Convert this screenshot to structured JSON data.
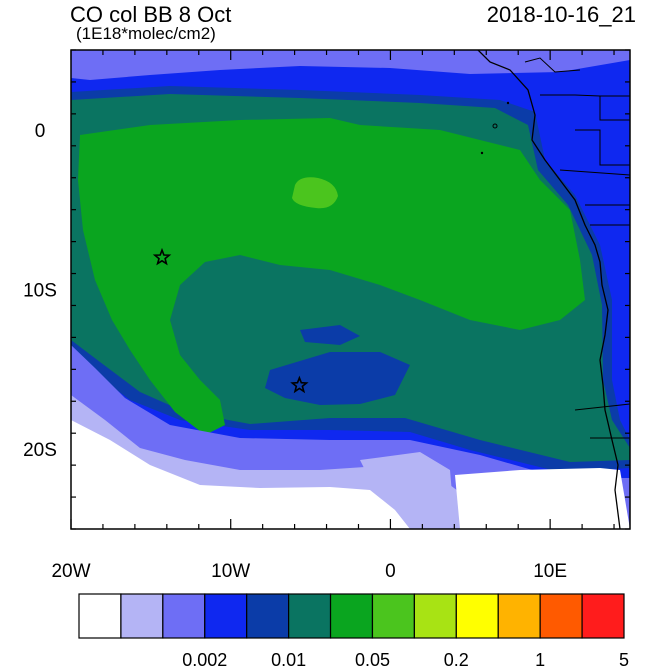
{
  "header": {
    "title": "CO col BB 8 Oct",
    "subtitle": "(1E18*molec/cm2)",
    "datetime": "2018-10-16_21"
  },
  "map": {
    "lon_range": [
      -20,
      15
    ],
    "lat_range": [
      -25,
      5
    ],
    "x_ticks": [
      {
        "value": -20,
        "label": "20W"
      },
      {
        "value": -10,
        "label": "10W"
      },
      {
        "value": 0,
        "label": "0"
      },
      {
        "value": 10,
        "label": "10E"
      }
    ],
    "y_ticks": [
      {
        "value": 0,
        "label": "0"
      },
      {
        "value": -10,
        "label": "10S"
      },
      {
        "value": -20,
        "label": "20S"
      }
    ],
    "markers": [
      {
        "name": "star-marker-1",
        "lon": -14.3,
        "lat": -8.0
      },
      {
        "name": "star-marker-2",
        "lon": -5.7,
        "lat": -16.0
      }
    ],
    "fill_colors": {
      "none": "#ffffff",
      "lightest": "#b4b4f5",
      "light": "#6e6ef5",
      "mid": "#0f28f0",
      "dark": "#0b3ca8",
      "teal": "#0a7461",
      "green": "#0aa51f",
      "brightgreen": "#4bc51e"
    }
  },
  "colorbar": {
    "colors": [
      "#ffffff",
      "#b4b4f5",
      "#6e6ef5",
      "#0f28f0",
      "#0b3ca8",
      "#0a7461",
      "#0aa51f",
      "#4bc51e",
      "#a8e314",
      "#ffff00",
      "#ffb300",
      "#ff5a00",
      "#ff1c1c"
    ],
    "labels": [
      "0.002",
      "0.01",
      "0.05",
      "0.2",
      "1",
      "5"
    ]
  }
}
